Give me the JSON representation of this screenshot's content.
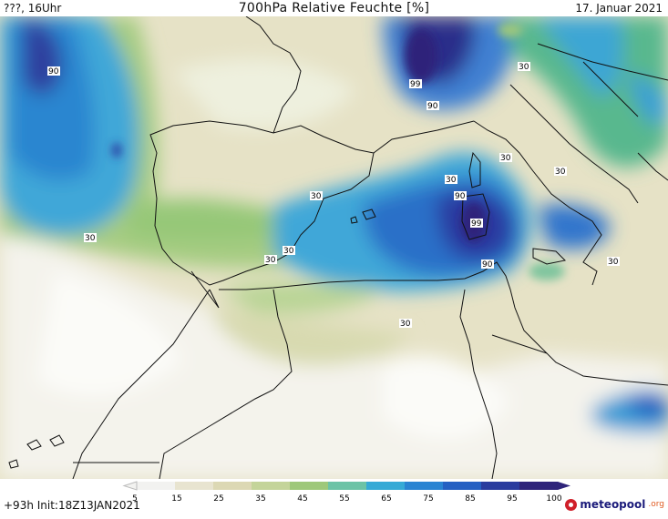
{
  "header": {
    "location": "???, 16Uhr",
    "title": "700hPa Relative Feuchte [%]",
    "date": "17. Januar 2021"
  },
  "map": {
    "contour_labels": [
      "90",
      "99",
      "90",
      "30",
      "30",
      "30",
      "30",
      "90",
      "99",
      "30",
      "90",
      "30",
      "30",
      "30",
      "30",
      "30"
    ]
  },
  "legend": {
    "ticks": [
      "5",
      "15",
      "25",
      "35",
      "45",
      "55",
      "65",
      "75",
      "85",
      "95",
      "100"
    ],
    "colors": [
      "#f2f2f0",
      "#e8e4d0",
      "#dcd8b4",
      "#c4d49a",
      "#9ec87a",
      "#6cc3a6",
      "#36aad6",
      "#2a84d2",
      "#2560c2",
      "#2a3c9e",
      "#2e247a"
    ]
  },
  "footer": {
    "run": "+93h  Init:18Z13JAN2021",
    "brand_name": "meteopool",
    "brand_tld": ".org"
  }
}
